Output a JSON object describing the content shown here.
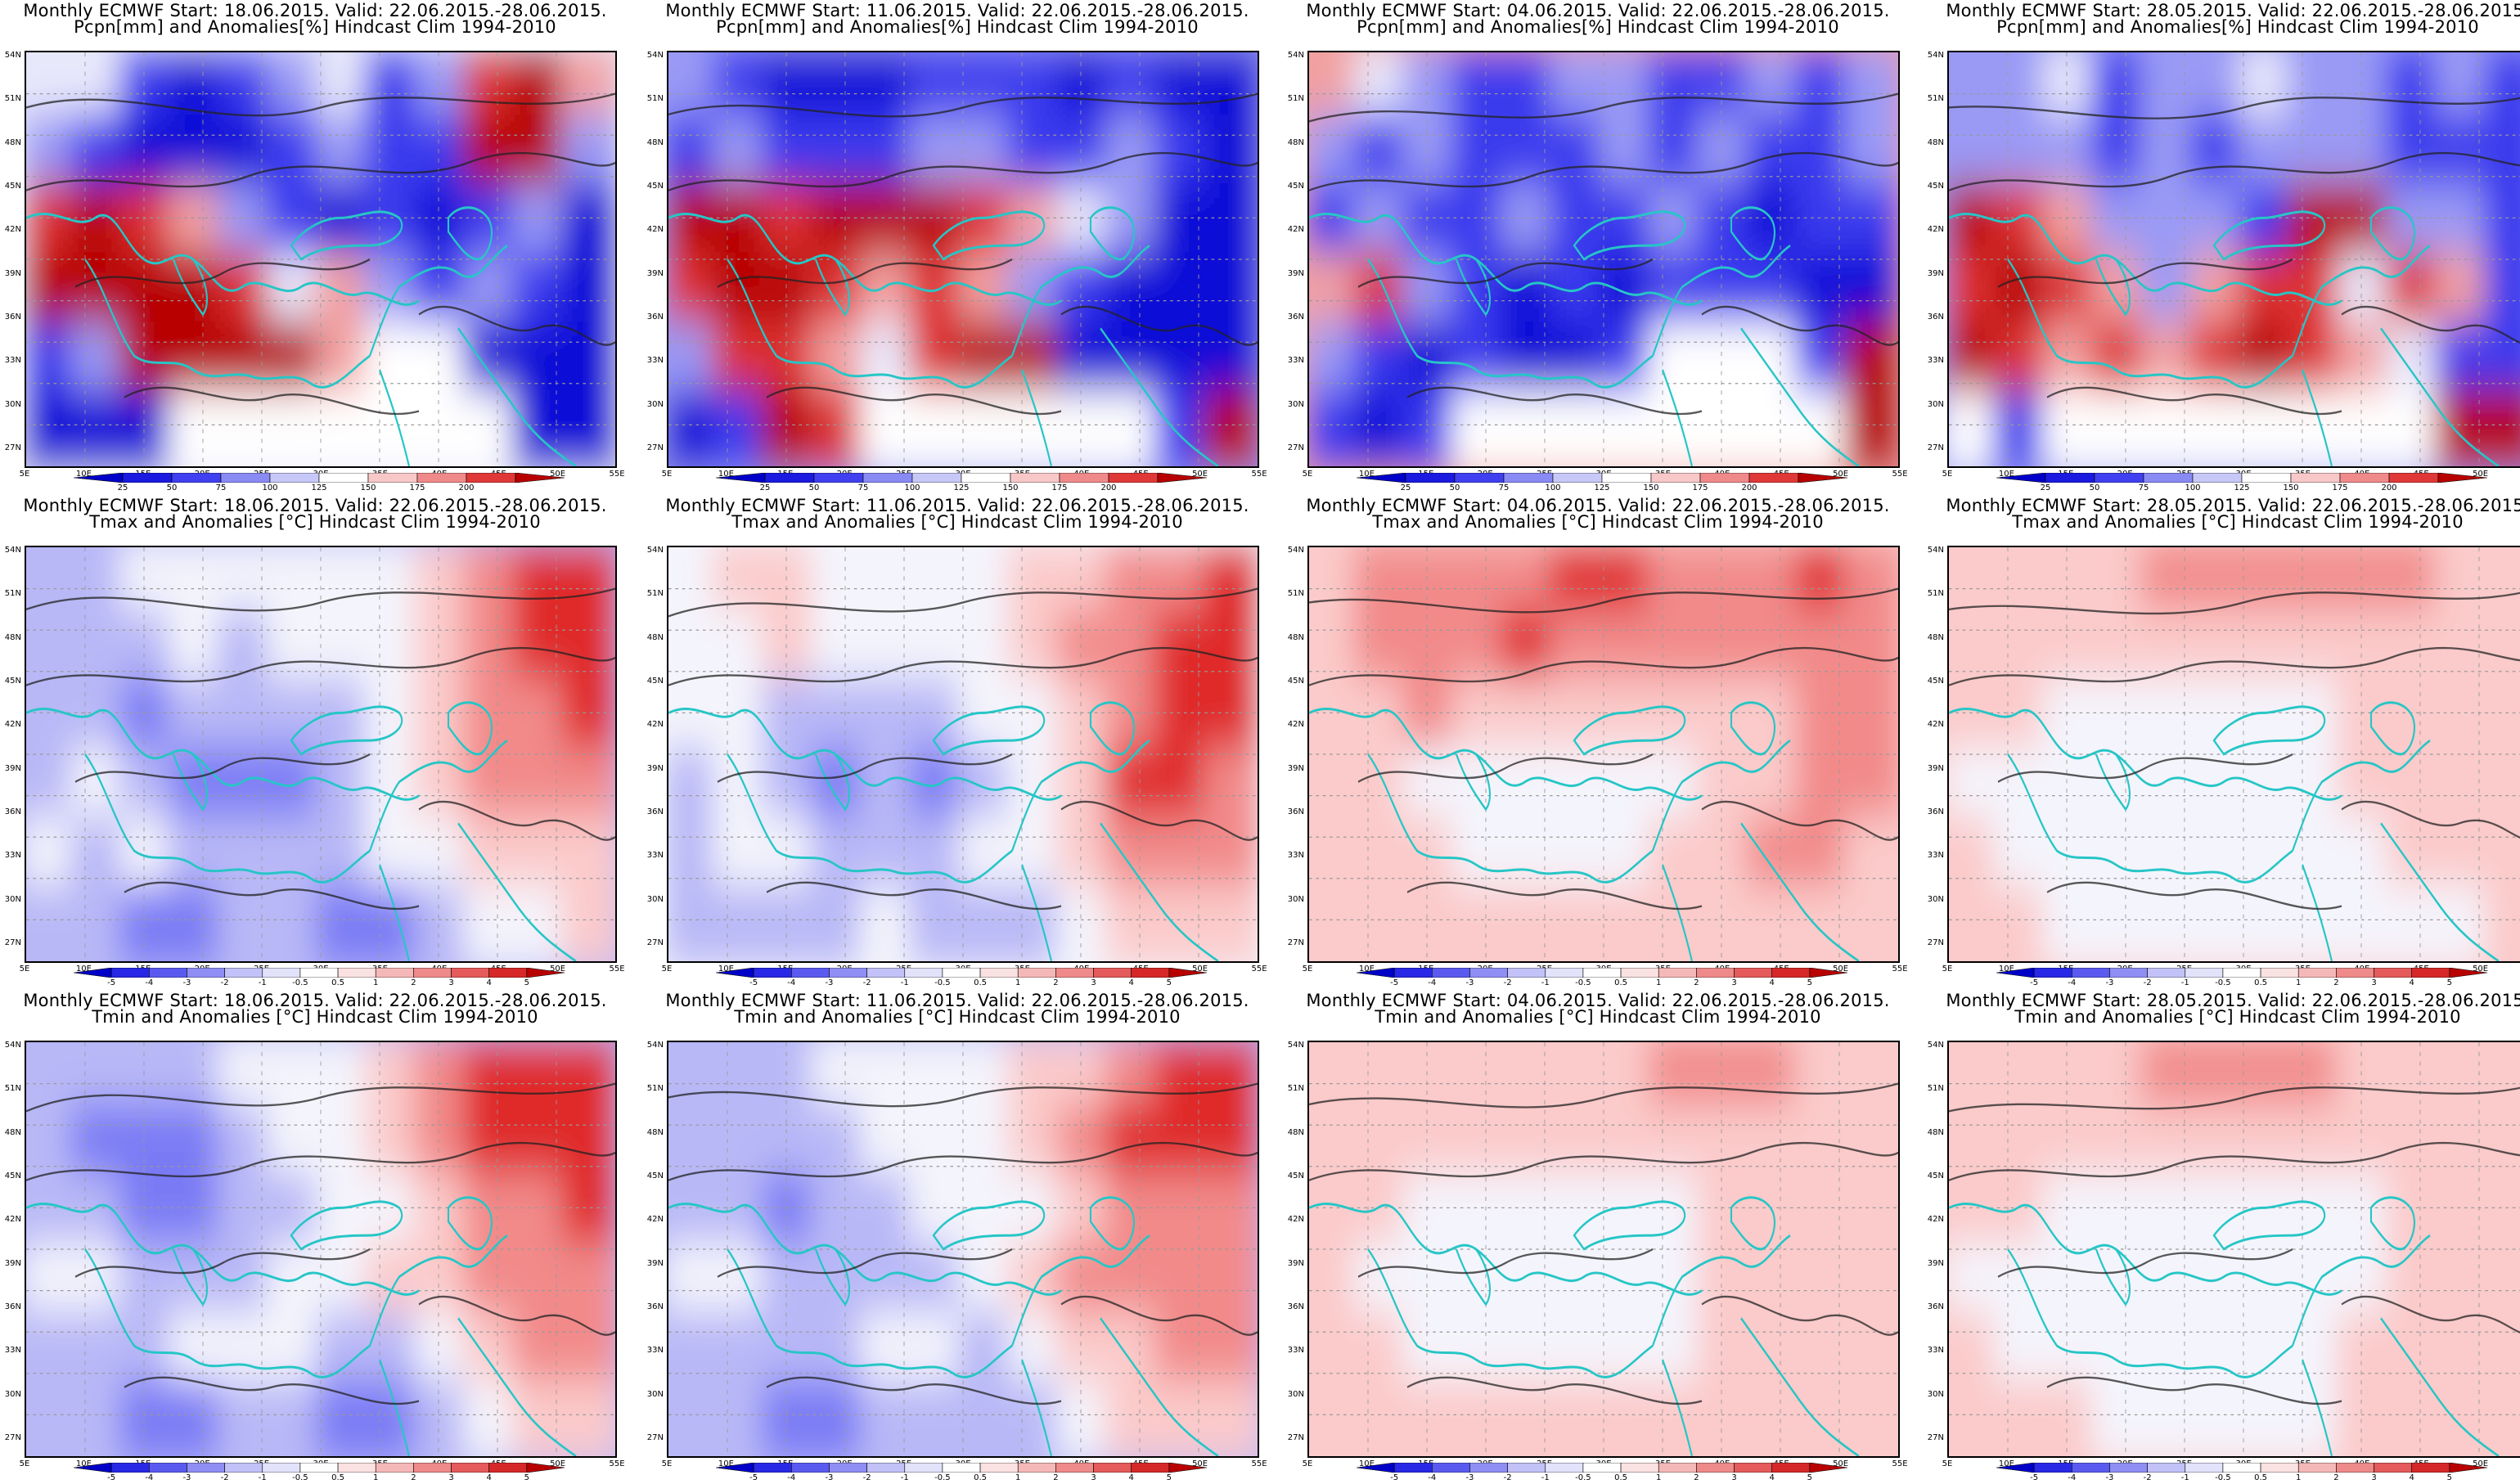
{
  "rows": [
    {
      "field": "precip",
      "line2": "Pcpn[mm] and Anomalies[%] Hindcast Clim 1994-2010",
      "colorbar_labels": [
        "25",
        "50",
        "75",
        "100",
        "125",
        "150",
        "175",
        "200"
      ],
      "colorbar_colors": [
        "#1f1fe6",
        "#3c3cf0",
        "#7a7af5",
        "#b8b8f7",
        "#e2e2fb",
        "#fbe0e0",
        "#f5a6a6",
        "#ef6a6a",
        "#e02a2a",
        "#b80000"
      ]
    },
    {
      "field": "tmax",
      "line2": "Tmax and Anomalies [°C] Hindcast Clim 1994-2010",
      "colorbar_labels": [
        "-5",
        "-4",
        "-3",
        "-2",
        "-1",
        "-0.5",
        "0.5",
        "1",
        "2",
        "3",
        "4",
        "5"
      ],
      "colorbar_colors": [
        "#1f1fe6",
        "#3c3cf0",
        "#5a5af2",
        "#7a7af5",
        "#a3a3f7",
        "#cacaf9",
        "#ffffff",
        "#fbd6d6",
        "#f5a6a6",
        "#ef7a7a",
        "#e84a4a",
        "#d81e1e",
        "#b80000"
      ]
    },
    {
      "field": "tmin",
      "line2": "Tmin and Anomalies [°C] Hindcast Clim 1994-2010",
      "colorbar_labels": [
        "-5",
        "-4",
        "-3",
        "-2",
        "-1",
        "-0.5",
        "0.5",
        "1",
        "2",
        "3",
        "4",
        "5"
      ],
      "colorbar_colors": [
        "#1f1fe6",
        "#3c3cf0",
        "#5a5af2",
        "#7a7af5",
        "#a3a3f7",
        "#cacaf9",
        "#ffffff",
        "#fbd6d6",
        "#f5a6a6",
        "#ef7a7a",
        "#e84a4a",
        "#d81e1e",
        "#b80000"
      ]
    }
  ],
  "columns": [
    {
      "line1": "Monthly ECMWF Start: 18.06.2015. Valid: 22.06.2015.-28.06.2015."
    },
    {
      "line1": "Monthly ECMWF Start: 11.06.2015. Valid: 22.06.2015.-28.06.2015."
    },
    {
      "line1": "Monthly ECMWF Start: 04.06.2015. Valid: 22.06.2015.-28.06.2015."
    },
    {
      "line1": "Monthly ECMWF Start: 28.05.2015. Valid: 22.06.2015.-28.06.2015."
    }
  ],
  "lat_labels": [
    "54N",
    "51N",
    "48N",
    "45N",
    "42N",
    "39N",
    "36N",
    "33N",
    "30N",
    "27N"
  ],
  "lon_labels": [
    "5E",
    "10E",
    "15E",
    "20E",
    "25E",
    "30E",
    "35E",
    "40E",
    "45E",
    "50E",
    "55E"
  ],
  "anomaly_pattern": {
    "precip": [
      [
        [
          0,
          0,
          -2,
          -3,
          -2,
          -1,
          0,
          -2,
          -1,
          2,
          3,
          1
        ],
        [
          -1,
          -2,
          -3,
          -3,
          -3,
          -2,
          -1,
          -2,
          -2,
          3,
          3,
          -1
        ],
        [
          2,
          3,
          2,
          1,
          -1,
          -2,
          -3,
          -2,
          -3,
          -2,
          -1,
          -3
        ],
        [
          3,
          3,
          3,
          3,
          2,
          0,
          1,
          -1,
          -2,
          -1,
          -2,
          -3
        ],
        [
          -2,
          -1,
          3,
          3,
          3,
          3,
          1,
          9,
          9,
          -3,
          -3,
          -3
        ],
        [
          -3,
          -3,
          -3,
          9,
          9,
          9,
          9,
          9,
          9,
          9,
          -3,
          -3
        ]
      ],
      [
        [
          -1,
          -2,
          -3,
          -3,
          -3,
          -2,
          -2,
          -2,
          -3,
          -2,
          -3,
          -3
        ],
        [
          -2,
          -1,
          -2,
          -2,
          -2,
          -1,
          -1,
          -2,
          -2,
          -1,
          -2,
          -3
        ],
        [
          3,
          3,
          2,
          3,
          3,
          3,
          2,
          1,
          0,
          -1,
          -3,
          -3
        ],
        [
          2,
          3,
          3,
          2,
          1,
          2,
          1,
          -1,
          -2,
          -3,
          -3,
          -3
        ],
        [
          -1,
          2,
          2,
          1,
          0,
          2,
          3,
          3,
          -3,
          -3,
          -3,
          -3
        ],
        [
          -3,
          -2,
          3,
          2,
          9,
          9,
          9,
          9,
          9,
          9,
          -2,
          3
        ]
      ],
      [
        [
          1,
          0,
          -1,
          -2,
          -2,
          -1,
          -1,
          -2,
          -2,
          -1,
          -2,
          -1
        ],
        [
          -1,
          -2,
          -1,
          -2,
          -2,
          -2,
          -1,
          -2,
          -1,
          -2,
          -2,
          -1
        ],
        [
          -2,
          -1,
          -2,
          -2,
          -1,
          -2,
          -2,
          -1,
          -2,
          -3,
          -2,
          -2
        ],
        [
          1,
          2,
          -1,
          -2,
          -3,
          -2,
          -3,
          -2,
          -2,
          -2,
          -3,
          -3
        ],
        [
          -1,
          -2,
          -3,
          -2,
          -3,
          -3,
          -2,
          9,
          9,
          9,
          -2,
          3
        ],
        [
          -2,
          -3,
          -2,
          9,
          9,
          9,
          9,
          9,
          9,
          9,
          9,
          3
        ]
      ],
      [
        [
          -1,
          -1,
          0,
          -2,
          -1,
          -1,
          0,
          -1,
          -1,
          -2,
          -1,
          -2
        ],
        [
          -1,
          -1,
          -1,
          -2,
          -1,
          -2,
          -1,
          -1,
          -1,
          -2,
          -2,
          -2
        ],
        [
          3,
          2,
          1,
          -1,
          -1,
          -1,
          -2,
          3,
          3,
          -1,
          -1,
          -2
        ],
        [
          2,
          3,
          2,
          1,
          -1,
          1,
          2,
          2,
          0,
          2,
          1,
          -2
        ],
        [
          3,
          2,
          1,
          2,
          1,
          2,
          3,
          2,
          1,
          0,
          -2,
          -2
        ],
        [
          9,
          -2,
          9,
          9,
          9,
          9,
          9,
          9,
          9,
          9,
          3,
          3
        ]
      ]
    ],
    "tmax": [
      [
        [
          -1,
          -1,
          0,
          0,
          0,
          0,
          0,
          0,
          1,
          2,
          3,
          3
        ],
        [
          -1,
          -1,
          -1,
          0,
          -1,
          0,
          0,
          0,
          1,
          2,
          3,
          3
        ],
        [
          -1,
          -1,
          -2,
          -1,
          -1,
          -1,
          -1,
          0,
          1,
          2,
          2,
          3
        ],
        [
          -1,
          0,
          -1,
          -2,
          -2,
          -2,
          -1,
          0,
          1,
          2,
          2,
          2
        ],
        [
          0,
          -1,
          0,
          -1,
          -1,
          -1,
          -1,
          0,
          0,
          1,
          1,
          1
        ],
        [
          -1,
          -1,
          -2,
          -2,
          -1,
          -1,
          -2,
          -2,
          -1,
          0,
          0,
          1
        ]
      ],
      [
        [
          0,
          1,
          1,
          0,
          0,
          0,
          0,
          1,
          1,
          2,
          2,
          3
        ],
        [
          0,
          0,
          1,
          0,
          0,
          0,
          0,
          1,
          2,
          2,
          3,
          3
        ],
        [
          0,
          0,
          -1,
          -1,
          -1,
          -1,
          0,
          0,
          1,
          2,
          3,
          3
        ],
        [
          -1,
          0,
          -1,
          -2,
          -1,
          -2,
          -1,
          0,
          1,
          3,
          3,
          2
        ],
        [
          -1,
          0,
          0,
          -1,
          -1,
          -1,
          0,
          0,
          1,
          2,
          2,
          2
        ],
        [
          -1,
          -1,
          -1,
          -1,
          0,
          -1,
          -1,
          -1,
          0,
          1,
          1,
          1
        ]
      ],
      [
        [
          1,
          2,
          2,
          2,
          2,
          3,
          3,
          2,
          2,
          2,
          3,
          2
        ],
        [
          1,
          2,
          2,
          2,
          3,
          2,
          2,
          2,
          2,
          2,
          2,
          2
        ],
        [
          1,
          1,
          2,
          1,
          1,
          1,
          1,
          1,
          1,
          1,
          2,
          2
        ],
        [
          1,
          1,
          0,
          0,
          0,
          0,
          0,
          0,
          1,
          1,
          2,
          2
        ],
        [
          1,
          1,
          1,
          0,
          0,
          0,
          0,
          1,
          1,
          2,
          2,
          1
        ],
        [
          1,
          1,
          1,
          1,
          1,
          1,
          1,
          1,
          1,
          1,
          1,
          1
        ]
      ],
      [
        [
          1,
          1,
          1,
          1,
          2,
          2,
          2,
          2,
          2,
          2,
          1,
          1
        ],
        [
          1,
          1,
          1,
          1,
          1,
          1,
          1,
          1,
          1,
          1,
          1,
          1
        ],
        [
          1,
          1,
          0,
          0,
          0,
          0,
          0,
          0,
          1,
          1,
          1,
          1
        ],
        [
          0,
          0,
          0,
          0,
          0,
          0,
          0,
          0,
          1,
          1,
          1,
          1
        ],
        [
          1,
          0,
          0,
          0,
          0,
          0,
          0,
          0,
          0,
          1,
          1,
          1
        ],
        [
          1,
          1,
          0,
          0,
          0,
          0,
          0,
          0,
          0,
          0,
          0,
          1
        ]
      ]
    ],
    "tmin": [
      [
        [
          -1,
          -1,
          -1,
          -1,
          0,
          0,
          0,
          1,
          2,
          3,
          3,
          3
        ],
        [
          -1,
          -2,
          -2,
          -2,
          -1,
          0,
          0,
          1,
          2,
          3,
          3,
          3
        ],
        [
          -1,
          -1,
          -2,
          -2,
          -1,
          -1,
          0,
          0,
          1,
          2,
          2,
          3
        ],
        [
          0,
          0,
          -1,
          -1,
          -1,
          0,
          0,
          1,
          1,
          2,
          2,
          2
        ],
        [
          -1,
          -1,
          -1,
          0,
          0,
          0,
          -1,
          -1,
          0,
          1,
          2,
          2
        ],
        [
          -1,
          -1,
          -2,
          -2,
          -1,
          -1,
          -2,
          -2,
          -1,
          0,
          1,
          1
        ]
      ],
      [
        [
          -1,
          -1,
          -1,
          0,
          0,
          0,
          0,
          1,
          1,
          2,
          3,
          3
        ],
        [
          -1,
          -1,
          -1,
          -1,
          0,
          0,
          0,
          1,
          2,
          3,
          3,
          3
        ],
        [
          -1,
          -1,
          -2,
          -1,
          -1,
          0,
          0,
          0,
          1,
          2,
          2,
          2
        ],
        [
          0,
          0,
          -1,
          -1,
          -1,
          -1,
          0,
          1,
          2,
          2,
          2,
          2
        ],
        [
          -1,
          -1,
          -1,
          -1,
          0,
          0,
          -1,
          0,
          1,
          1,
          2,
          2
        ],
        [
          -1,
          -1,
          -2,
          -2,
          -1,
          -1,
          -1,
          -1,
          0,
          1,
          1,
          1
        ]
      ],
      [
        [
          1,
          1,
          1,
          1,
          1,
          1,
          1,
          2,
          2,
          2,
          1,
          1
        ],
        [
          1,
          1,
          1,
          1,
          1,
          1,
          1,
          1,
          1,
          1,
          1,
          1
        ],
        [
          1,
          1,
          0,
          0,
          0,
          0,
          0,
          0,
          1,
          1,
          1,
          1
        ],
        [
          1,
          0,
          0,
          0,
          0,
          0,
          0,
          0,
          1,
          1,
          1,
          1
        ],
        [
          1,
          1,
          0,
          0,
          0,
          0,
          0,
          0,
          1,
          1,
          1,
          1
        ],
        [
          1,
          1,
          1,
          1,
          1,
          1,
          1,
          1,
          1,
          1,
          1,
          1
        ]
      ],
      [
        [
          1,
          1,
          1,
          1,
          2,
          2,
          2,
          2,
          1,
          1,
          1,
          1
        ],
        [
          1,
          1,
          1,
          1,
          1,
          1,
          1,
          1,
          1,
          1,
          1,
          1
        ],
        [
          1,
          1,
          0,
          0,
          0,
          0,
          0,
          0,
          0,
          1,
          1,
          1
        ],
        [
          0,
          0,
          0,
          0,
          0,
          0,
          0,
          0,
          0,
          1,
          1,
          1
        ],
        [
          1,
          0,
          0,
          0,
          0,
          0,
          0,
          0,
          1,
          1,
          1,
          1
        ],
        [
          1,
          1,
          1,
          0,
          0,
          0,
          0,
          0,
          1,
          1,
          1,
          1
        ]
      ]
    ]
  }
}
